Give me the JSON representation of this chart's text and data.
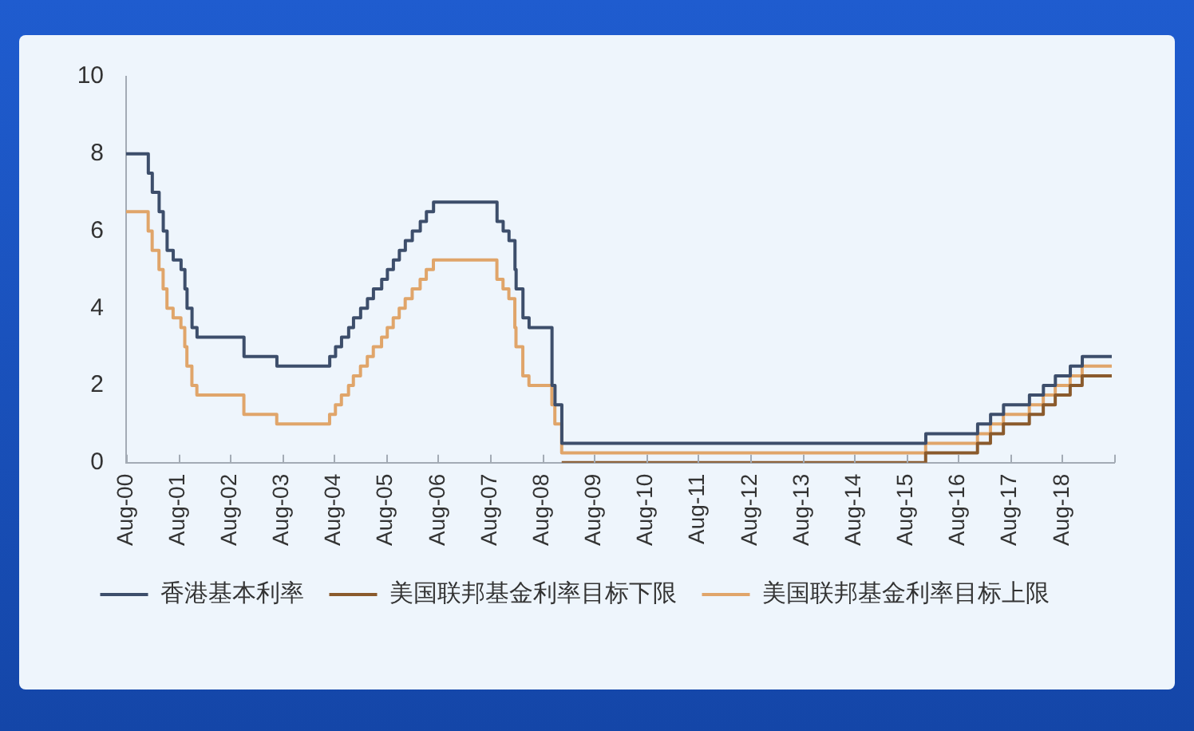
{
  "chart_data": {
    "type": "step",
    "legend": "bottom",
    "grid": false,
    "marker": "none",
    "xlim": [
      "2000-08",
      "2019-08"
    ],
    "xticks": [
      {
        "value": "2000-08",
        "label": "Aug-00"
      },
      {
        "value": "2001-08",
        "label": "Aug-01"
      },
      {
        "value": "2002-08",
        "label": "Aug-02"
      },
      {
        "value": "2003-08",
        "label": "Aug-03"
      },
      {
        "value": "2004-08",
        "label": "Aug-04"
      },
      {
        "value": "2005-08",
        "label": "Aug-05"
      },
      {
        "value": "2006-08",
        "label": "Aug-06"
      },
      {
        "value": "2007-08",
        "label": "Aug-07"
      },
      {
        "value": "2008-08",
        "label": "Aug-08"
      },
      {
        "value": "2009-08",
        "label": "Aug-09"
      },
      {
        "value": "2010-08",
        "label": "Aug-10"
      },
      {
        "value": "2011-08",
        "label": "Aug-11"
      },
      {
        "value": "2012-08",
        "label": "Aug-12"
      },
      {
        "value": "2013-08",
        "label": "Aug-13"
      },
      {
        "value": "2014-08",
        "label": "Aug-14"
      },
      {
        "value": "2015-08",
        "label": "Aug-15"
      },
      {
        "value": "2016-08",
        "label": "Aug-16"
      },
      {
        "value": "2017-08",
        "label": "Aug-17"
      },
      {
        "value": "2018-08",
        "label": "Aug-18"
      },
      {
        "value": "2019-08",
        "label": null
      }
    ],
    "ylim": [
      0,
      10
    ],
    "yticks": [
      0,
      2,
      4,
      6,
      8,
      10
    ],
    "series": [
      {
        "name": "香港基本利率",
        "color": "#3d4e6b",
        "x": [
          "2000-08-01",
          "2001-01-04",
          "2001-02-01",
          "2001-03-21",
          "2001-04-19",
          "2001-05-16",
          "2001-06-28",
          "2001-08-22",
          "2001-09-18",
          "2001-10-03",
          "2001-11-07",
          "2001-12-12",
          "2002-11-07",
          "2003-06-26",
          "2004-07-01",
          "2004-08-11",
          "2004-09-22",
          "2004-11-11",
          "2004-12-15",
          "2005-02-03",
          "2005-03-23",
          "2005-05-04",
          "2005-07-01",
          "2005-08-10",
          "2005-09-21",
          "2005-11-02",
          "2005-12-14",
          "2006-02-01",
          "2006-03-29",
          "2006-05-11",
          "2006-06-30",
          "2007-09-19",
          "2007-11-01",
          "2007-12-12",
          "2008-01-23",
          "2008-01-31",
          "2008-03-19",
          "2008-05-01",
          "2008-10-09",
          "2008-10-30",
          "2008-12-17",
          "2015-12-17",
          "2016-12-15",
          "2017-03-16",
          "2017-06-15",
          "2017-12-14",
          "2018-03-22",
          "2018-06-14",
          "2018-09-27",
          "2018-12-20",
          "2019-07-15"
        ],
        "values": [
          8,
          7.5,
          7,
          6.5,
          6,
          5.5,
          5.25,
          5,
          4.5,
          4,
          3.5,
          3.25,
          2.75,
          2.5,
          2.75,
          3,
          3.25,
          3.5,
          3.75,
          4,
          4.25,
          4.5,
          4.75,
          5,
          5.25,
          5.5,
          5.75,
          6,
          6.25,
          6.5,
          6.75,
          6.25,
          6,
          5.75,
          5,
          4.5,
          3.75,
          3.5,
          2,
          1.5,
          0.5,
          0.75,
          1,
          1.25,
          1.5,
          1.75,
          2,
          2.25,
          2.5,
          2.75,
          2.75
        ]
      },
      {
        "name": "美国联邦基金利率目标下限",
        "color": "#8a5a2c",
        "x": [
          "2008-12-16",
          "2015-12-16",
          "2016-12-14",
          "2017-03-15",
          "2017-06-14",
          "2017-12-13",
          "2018-03-21",
          "2018-06-13",
          "2018-09-26",
          "2018-12-19",
          "2019-07-15"
        ],
        "values": [
          0,
          0.25,
          0.5,
          0.75,
          1,
          1.25,
          1.5,
          1.75,
          2,
          2.25,
          2.25
        ]
      },
      {
        "name": "美国联邦基金利率目标上限",
        "color": "#e0a56a",
        "x": [
          "2000-08-01",
          "2001-01-03",
          "2001-01-31",
          "2001-03-20",
          "2001-04-18",
          "2001-05-15",
          "2001-06-27",
          "2001-08-21",
          "2001-09-17",
          "2001-10-02",
          "2001-11-06",
          "2001-12-11",
          "2002-11-06",
          "2003-06-25",
          "2004-06-30",
          "2004-08-10",
          "2004-09-21",
          "2004-11-10",
          "2004-12-14",
          "2005-02-02",
          "2005-03-22",
          "2005-05-03",
          "2005-06-30",
          "2005-08-09",
          "2005-09-20",
          "2005-11-01",
          "2005-12-13",
          "2006-01-31",
          "2006-03-28",
          "2006-05-10",
          "2006-06-29",
          "2007-09-18",
          "2007-10-31",
          "2007-12-11",
          "2008-01-22",
          "2008-01-30",
          "2008-03-18",
          "2008-04-30",
          "2008-10-08",
          "2008-10-29",
          "2008-12-16",
          "2015-12-16",
          "2016-12-14",
          "2017-03-15",
          "2017-06-14",
          "2017-12-13",
          "2018-03-21",
          "2018-06-13",
          "2018-09-26",
          "2018-12-19",
          "2019-07-15"
        ],
        "values": [
          6.5,
          6,
          5.5,
          5,
          4.5,
          4,
          3.75,
          3.5,
          3,
          2.5,
          2,
          1.75,
          1.25,
          1,
          1.25,
          1.5,
          1.75,
          2,
          2.25,
          2.5,
          2.75,
          3,
          3.25,
          3.5,
          3.75,
          4,
          4.25,
          4.5,
          4.75,
          5,
          5.25,
          4.75,
          4.5,
          4.25,
          3.5,
          3,
          2.25,
          2,
          1.5,
          1,
          0.25,
          0.5,
          0.75,
          1,
          1.25,
          1.5,
          1.75,
          2,
          2.25,
          2.5,
          2.5
        ]
      }
    ]
  }
}
